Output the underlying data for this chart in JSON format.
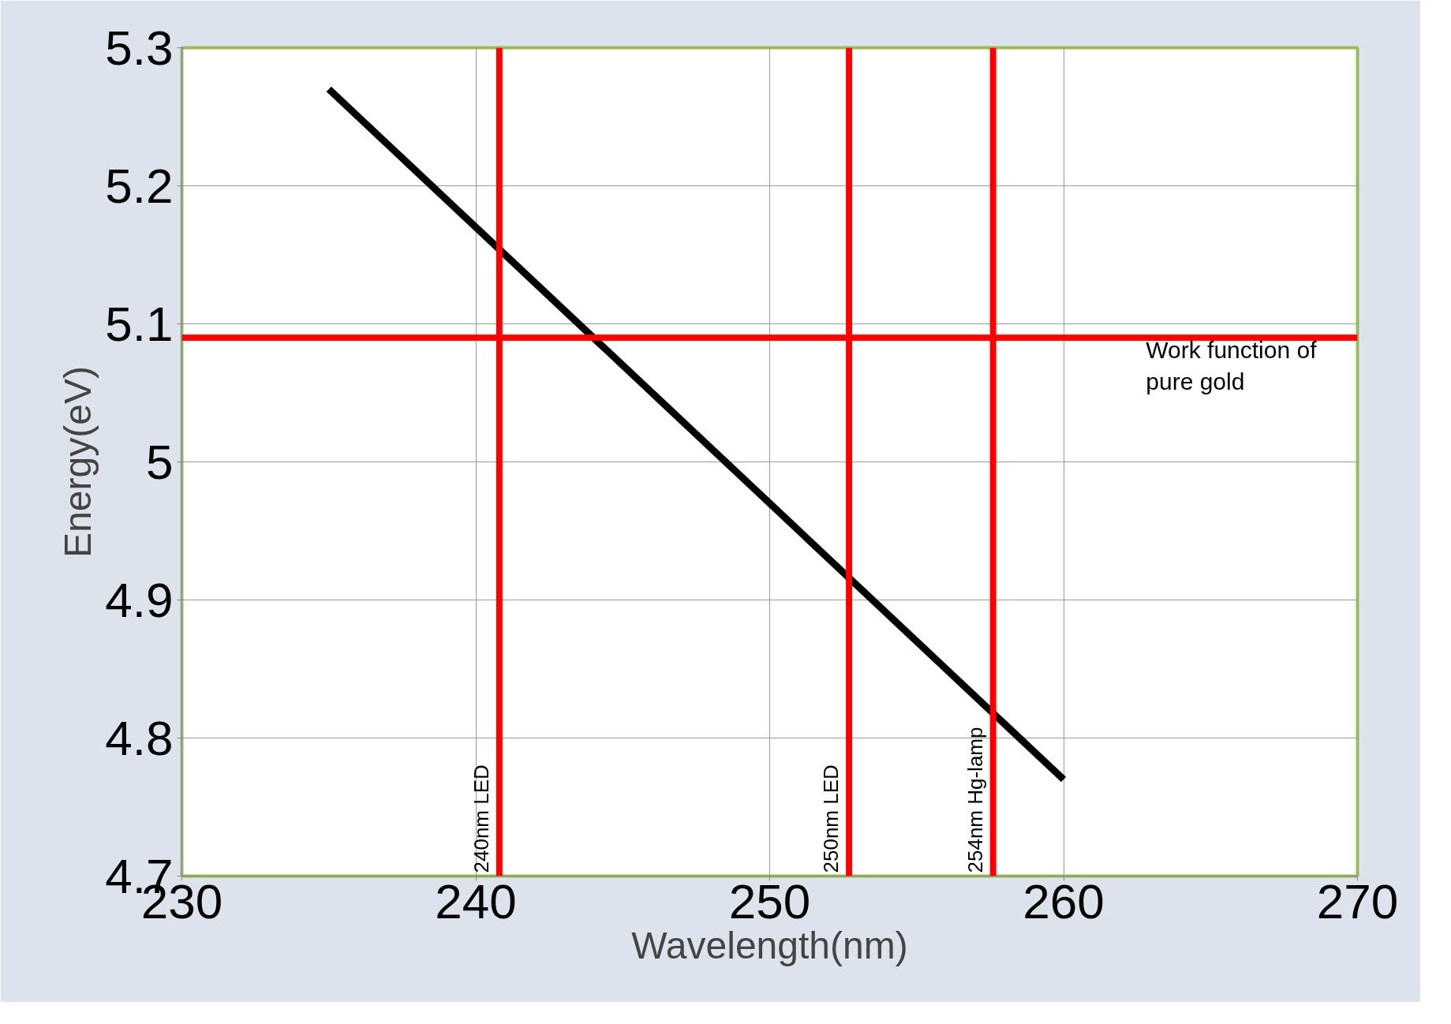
{
  "chart_data": {
    "type": "line",
    "xlabel": "Wavelength(nm)",
    "ylabel": "Energy(eV)",
    "x": [
      235,
      260
    ],
    "series": [
      {
        "color": "#000000",
        "values": [
          5.27,
          4.77
        ]
      }
    ],
    "xlim": [
      230,
      270
    ],
    "xticks": [
      230,
      240,
      250,
      260,
      270
    ],
    "ylim": [
      4.7,
      5.3
    ],
    "yticks": [
      4.7,
      4.8,
      4.9,
      5,
      5.1,
      5.2,
      5.3
    ],
    "grid": true,
    "marker": "none",
    "line_style": "solid",
    "ref_lines": [
      {
        "axis": "x",
        "value": 240.8,
        "label": "240nm LED",
        "color": "#ff0000"
      },
      {
        "axis": "x",
        "value": 252.7,
        "label": "250nm LED",
        "color": "#ff0000"
      },
      {
        "axis": "x",
        "value": 257.6,
        "label": "254nm Hg-lamp",
        "color": "#ff0000"
      },
      {
        "axis": "y",
        "value": 5.09,
        "label": "Work function of\npure gold",
        "color": "#ff0000"
      }
    ]
  }
}
